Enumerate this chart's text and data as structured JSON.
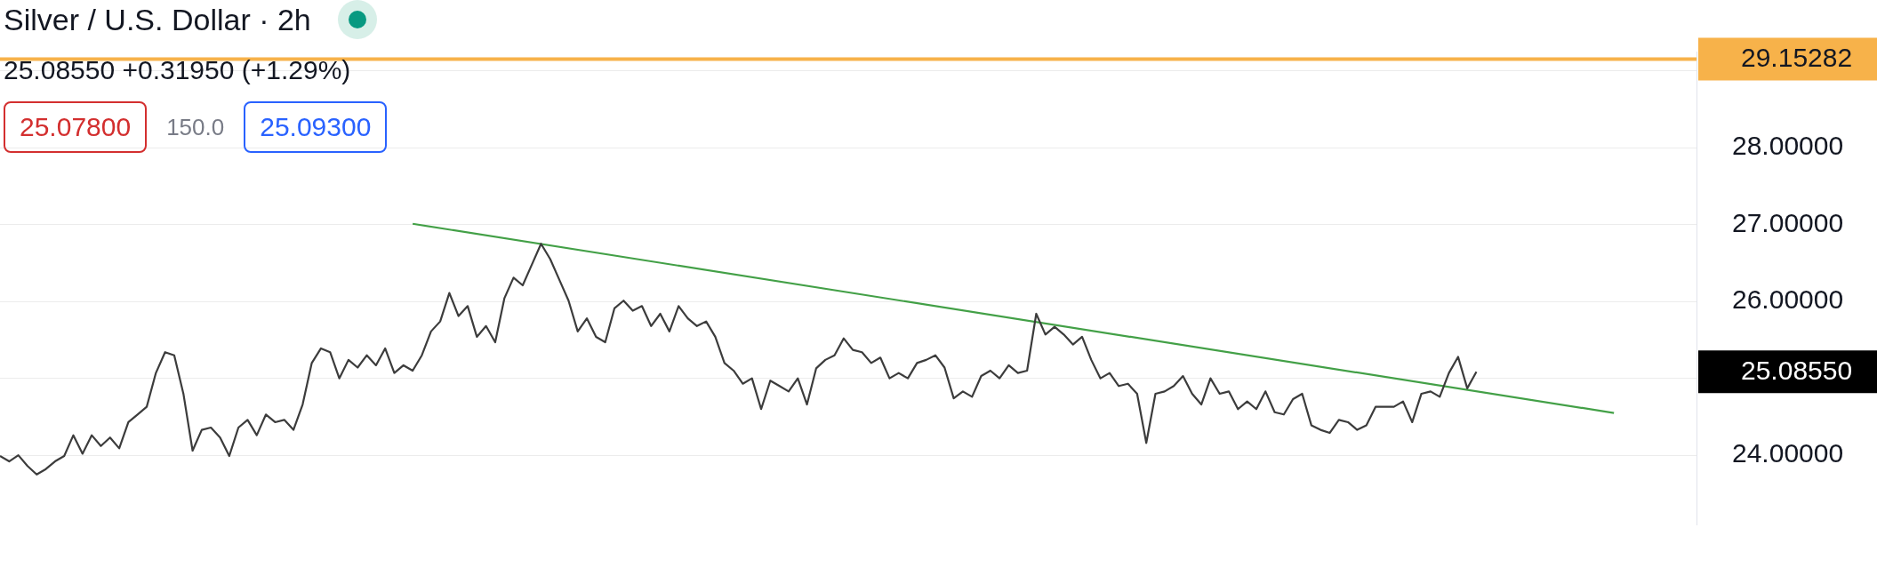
{
  "chart_data": {
    "type": "line",
    "title": "Silver / U.S. Dollar · 2h",
    "subtitle": "25.08550  +0.31950 (+1.29%)",
    "annotations": [
      "25.07800",
      "150.0",
      "25.09300",
      "25.08550"
    ],
    "categories": [
      null,
      null,
      null,
      null,
      null,
      null,
      null,
      null,
      null,
      null,
      null,
      null,
      null,
      null,
      null,
      null,
      null,
      null,
      null,
      null,
      null,
      null,
      null,
      null,
      null,
      null,
      null,
      null,
      null,
      null,
      null,
      null,
      null,
      null,
      null,
      null,
      null,
      null,
      null,
      null,
      null,
      null,
      null,
      null,
      null,
      null,
      null,
      null,
      null,
      null,
      null,
      null,
      null,
      null,
      null,
      null,
      null,
      null,
      null,
      null,
      null,
      null,
      null,
      null,
      null,
      null,
      null,
      null,
      null,
      null,
      null,
      null,
      null,
      null,
      null,
      null,
      null,
      null,
      null,
      null,
      null,
      null,
      null,
      null,
      null,
      null,
      null,
      null,
      null,
      null,
      null,
      null,
      null,
      null,
      null,
      null,
      null,
      null,
      null,
      null,
      null,
      null,
      null,
      null,
      null,
      null,
      null,
      null,
      null,
      null,
      null,
      null,
      null,
      null,
      null,
      null,
      null,
      null,
      null,
      null,
      null,
      null,
      null,
      null,
      null,
      null,
      null,
      null,
      null,
      null,
      null,
      null,
      null,
      null,
      null,
      null,
      null,
      null,
      null,
      null,
      null,
      null,
      null,
      null,
      null,
      null,
      null,
      null,
      null,
      null,
      null,
      null,
      null,
      null,
      null,
      null,
      null,
      null,
      null,
      null,
      null,
      null,
      null,
      null,
      null,
      null,
      null,
      null,
      null,
      null,
      null,
      null,
      null,
      null,
      null,
      null,
      null,
      null,
      null,
      null,
      null,
      null,
      null,
      null,
      null,
      null
    ],
    "ylim": [
      23.1,
      29.25
    ],
    "yticks": [
      {
        "value": 24,
        "label": "24.00000"
      },
      {
        "value": 25,
        "label": null
      },
      {
        "value": 26,
        "label": "26.00000"
      },
      {
        "value": 27,
        "label": "27.00000"
      },
      {
        "value": 28,
        "label": "28.00000"
      },
      {
        "value": 29,
        "label": null
      }
    ],
    "tick_labels": "y",
    "grid": "y",
    "legend": false,
    "marker": "none",
    "line_style": "solid",
    "ref_lines": [
      {
        "axis": "y",
        "value": 29.15282,
        "label": "29.15282",
        "color": "#f7b24a"
      }
    ],
    "series": [
      {
        "color": "#3c3c3c",
        "values": [
          23.99,
          23.92,
          24.0,
          23.86,
          23.75,
          23.82,
          23.92,
          23.99,
          24.26,
          24.02,
          24.26,
          24.12,
          24.23,
          24.09,
          24.43,
          24.53,
          24.63,
          25.07,
          25.34,
          25.3,
          24.8,
          24.06,
          24.33,
          24.36,
          24.23,
          23.99,
          24.36,
          24.46,
          24.26,
          24.53,
          24.43,
          24.46,
          24.33,
          24.66,
          25.2,
          25.39,
          25.34,
          25.0,
          25.24,
          25.14,
          25.3,
          25.17,
          25.39,
          25.07,
          25.17,
          25.1,
          25.3,
          25.61,
          25.74,
          26.11,
          25.81,
          25.94,
          25.54,
          25.68,
          25.47,
          26.04,
          26.31,
          26.21,
          26.48,
          26.75,
          26.55,
          26.28,
          26.01,
          25.61,
          25.78,
          25.54,
          25.47,
          25.91,
          26.01,
          25.88,
          25.94,
          25.68,
          25.84,
          25.61,
          25.94,
          25.78,
          25.68,
          25.74,
          25.54,
          25.2,
          25.1,
          24.93,
          25.0,
          24.6,
          24.97,
          24.9,
          24.83,
          25.0,
          24.66,
          25.13,
          25.24,
          25.3,
          25.52,
          25.37,
          25.34,
          25.2,
          25.27,
          25.0,
          25.07,
          25.0,
          25.2,
          25.24,
          25.3,
          25.14,
          24.74,
          24.83,
          24.76,
          25.03,
          25.1,
          25.0,
          25.17,
          25.07,
          25.1,
          25.84,
          25.57,
          25.67,
          25.57,
          25.44,
          25.54,
          25.24,
          25.0,
          25.07,
          24.9,
          24.93,
          24.8,
          24.16,
          24.8,
          24.83,
          24.9,
          25.03,
          24.8,
          24.66,
          25.0,
          24.8,
          24.83,
          24.6,
          24.7,
          24.6,
          24.83,
          24.56,
          24.53,
          24.73,
          24.8,
          24.39,
          24.33,
          24.29,
          24.46,
          24.43,
          24.33,
          24.39,
          24.63,
          24.63,
          24.63,
          24.7,
          24.43,
          24.8,
          24.83,
          24.76,
          25.07,
          25.28,
          24.87,
          25.0855,
          null,
          null,
          null,
          null,
          null,
          null,
          null,
          null,
          null,
          null,
          null,
          null,
          null,
          null,
          null,
          null,
          null,
          null,
          null,
          null,
          null,
          null,
          null,
          null
        ]
      },
      {
        "type": "line",
        "color": "#43a047",
        "values": [
          null,
          null,
          null,
          null,
          null,
          null,
          null,
          null,
          null,
          null,
          null,
          null,
          null,
          null,
          null,
          null,
          null,
          null,
          null,
          null,
          null,
          null,
          null,
          null,
          null,
          null,
          null,
          null,
          null,
          null,
          null,
          null,
          null,
          null,
          null,
          null,
          null,
          null,
          null,
          null,
          null,
          null,
          null,
          null,
          null,
          27.01,
          null,
          null,
          null,
          null,
          null,
          null,
          null,
          null,
          null,
          null,
          null,
          null,
          null,
          null,
          null,
          null,
          null,
          null,
          null,
          null,
          null,
          null,
          null,
          null,
          null,
          null,
          null,
          null,
          null,
          null,
          null,
          null,
          null,
          null,
          null,
          null,
          null,
          null,
          null,
          null,
          null,
          null,
          null,
          null,
          null,
          null,
          null,
          null,
          null,
          null,
          null,
          null,
          null,
          null,
          null,
          null,
          null,
          null,
          null,
          null,
          null,
          null,
          null,
          null,
          null,
          null,
          null,
          null,
          null,
          null,
          null,
          null,
          null,
          null,
          null,
          null,
          null,
          null,
          null,
          null,
          null,
          null,
          null,
          null,
          null,
          null,
          null,
          null,
          null,
          null,
          null,
          null,
          null,
          null,
          null,
          null,
          null,
          null,
          null,
          null,
          null,
          null,
          null,
          null,
          null,
          null,
          null,
          null,
          null,
          null,
          null,
          null,
          null,
          null,
          null,
          null,
          null,
          null,
          null,
          null,
          null,
          null,
          null,
          null,
          null,
          null,
          null,
          null,
          null,
          null,
          24.55,
          null,
          null,
          null,
          null,
          null,
          null,
          null,
          null,
          null
        ]
      }
    ]
  }
}
